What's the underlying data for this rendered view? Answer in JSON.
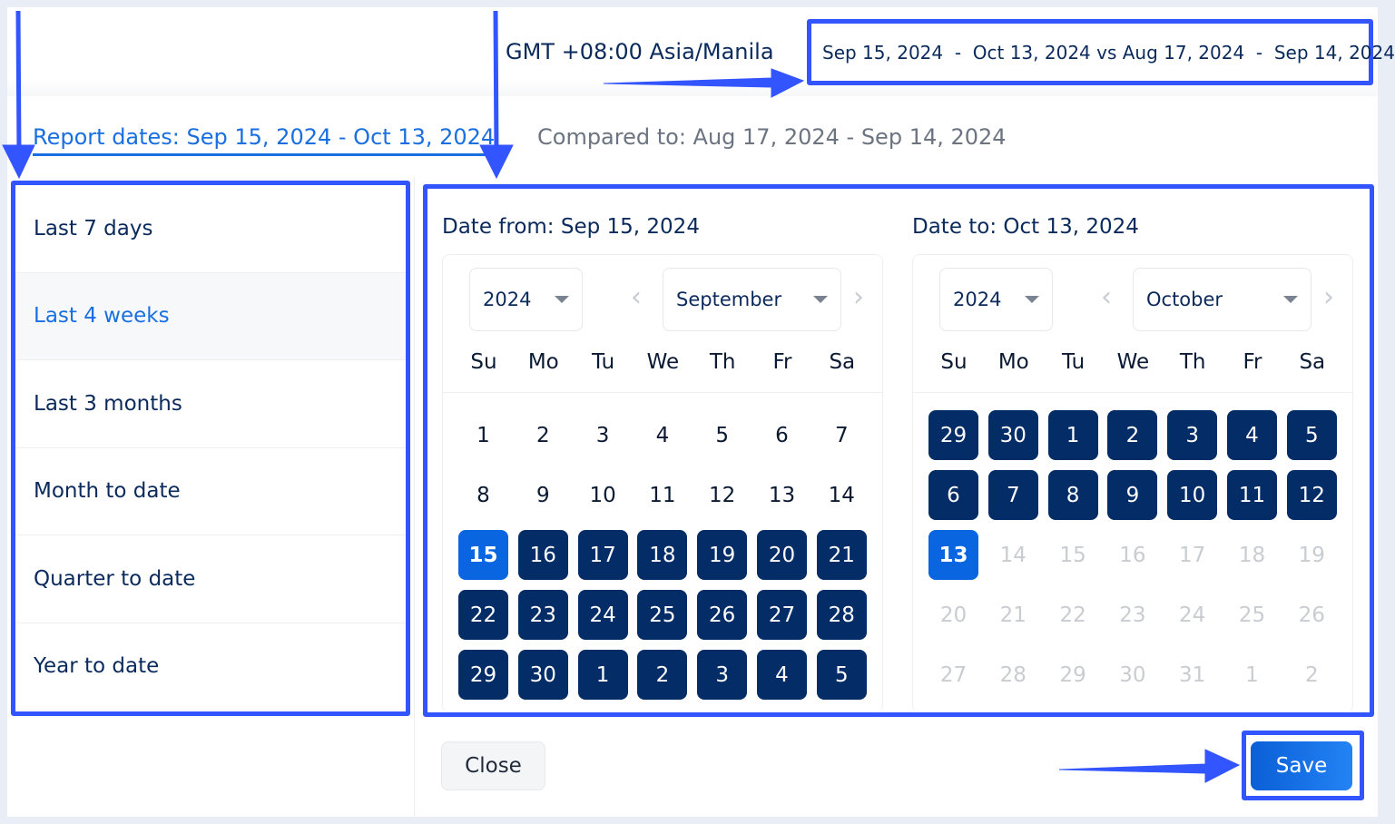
{
  "header": {
    "timezone": "GMT +08:00 Asia/Manila",
    "range_summary": "Sep 15, 2024  -  Oct 13, 2024 vs Aug 17, 2024  -  Sep 14, 2024"
  },
  "tabs": {
    "report": "Report dates: Sep 15, 2024 - Oct 13, 2024",
    "compared": "Compared to: Aug 17, 2024 - Sep 14, 2024"
  },
  "presets": [
    {
      "label": "Last 7 days"
    },
    {
      "label": "Last 4 weeks",
      "active": true
    },
    {
      "label": "Last 3 months"
    },
    {
      "label": "Month to date"
    },
    {
      "label": "Quarter to date"
    },
    {
      "label": "Year to date"
    }
  ],
  "weekdays": [
    "Su",
    "Mo",
    "Tu",
    "We",
    "Th",
    "Fr",
    "Sa"
  ],
  "calendars": [
    {
      "title": "Date from: Sep 15, 2024",
      "year": "2024",
      "month": "September",
      "weeks": [
        [
          [
            "1",
            "n"
          ],
          [
            "2",
            "n"
          ],
          [
            "3",
            "n"
          ],
          [
            "4",
            "n"
          ],
          [
            "5",
            "n"
          ],
          [
            "6",
            "n"
          ],
          [
            "7",
            "n"
          ]
        ],
        [
          [
            "8",
            "n"
          ],
          [
            "9",
            "n"
          ],
          [
            "10",
            "n"
          ],
          [
            "11",
            "n"
          ],
          [
            "12",
            "n"
          ],
          [
            "13",
            "n"
          ],
          [
            "14",
            "n"
          ]
        ],
        [
          [
            "15",
            "s"
          ],
          [
            "16",
            "r"
          ],
          [
            "17",
            "r"
          ],
          [
            "18",
            "r"
          ],
          [
            "19",
            "r"
          ],
          [
            "20",
            "r"
          ],
          [
            "21",
            "r"
          ]
        ],
        [
          [
            "22",
            "r"
          ],
          [
            "23",
            "r"
          ],
          [
            "24",
            "r"
          ],
          [
            "25",
            "r"
          ],
          [
            "26",
            "r"
          ],
          [
            "27",
            "r"
          ],
          [
            "28",
            "r"
          ]
        ],
        [
          [
            "29",
            "r"
          ],
          [
            "30",
            "r"
          ],
          [
            "1",
            "r"
          ],
          [
            "2",
            "r"
          ],
          [
            "3",
            "r"
          ],
          [
            "4",
            "r"
          ],
          [
            "5",
            "r"
          ]
        ]
      ]
    },
    {
      "title": "Date to: Oct 13, 2024",
      "year": "2024",
      "month": "October",
      "weeks": [
        [
          [
            "29",
            "r"
          ],
          [
            "30",
            "r"
          ],
          [
            "1",
            "r"
          ],
          [
            "2",
            "r"
          ],
          [
            "3",
            "r"
          ],
          [
            "4",
            "r"
          ],
          [
            "5",
            "r"
          ]
        ],
        [
          [
            "6",
            "r"
          ],
          [
            "7",
            "r"
          ],
          [
            "8",
            "r"
          ],
          [
            "9",
            "r"
          ],
          [
            "10",
            "r"
          ],
          [
            "11",
            "r"
          ],
          [
            "12",
            "r"
          ]
        ],
        [
          [
            "13",
            "s"
          ],
          [
            "14",
            "m"
          ],
          [
            "15",
            "m"
          ],
          [
            "16",
            "m"
          ],
          [
            "17",
            "m"
          ],
          [
            "18",
            "m"
          ],
          [
            "19",
            "m"
          ]
        ],
        [
          [
            "20",
            "m"
          ],
          [
            "21",
            "m"
          ],
          [
            "22",
            "m"
          ],
          [
            "23",
            "m"
          ],
          [
            "24",
            "m"
          ],
          [
            "25",
            "m"
          ],
          [
            "26",
            "m"
          ]
        ],
        [
          [
            "27",
            "m"
          ],
          [
            "28",
            "m"
          ],
          [
            "29",
            "m"
          ],
          [
            "30",
            "m"
          ],
          [
            "31",
            "m"
          ],
          [
            "1",
            "m"
          ],
          [
            "2",
            "m"
          ]
        ]
      ]
    }
  ],
  "buttons": {
    "close": "Close",
    "save": "Save"
  },
  "colors": {
    "annotation": "#3355ff",
    "range": "#042c66",
    "selected": "#0a66e0",
    "accent": "#1a6fe0"
  }
}
